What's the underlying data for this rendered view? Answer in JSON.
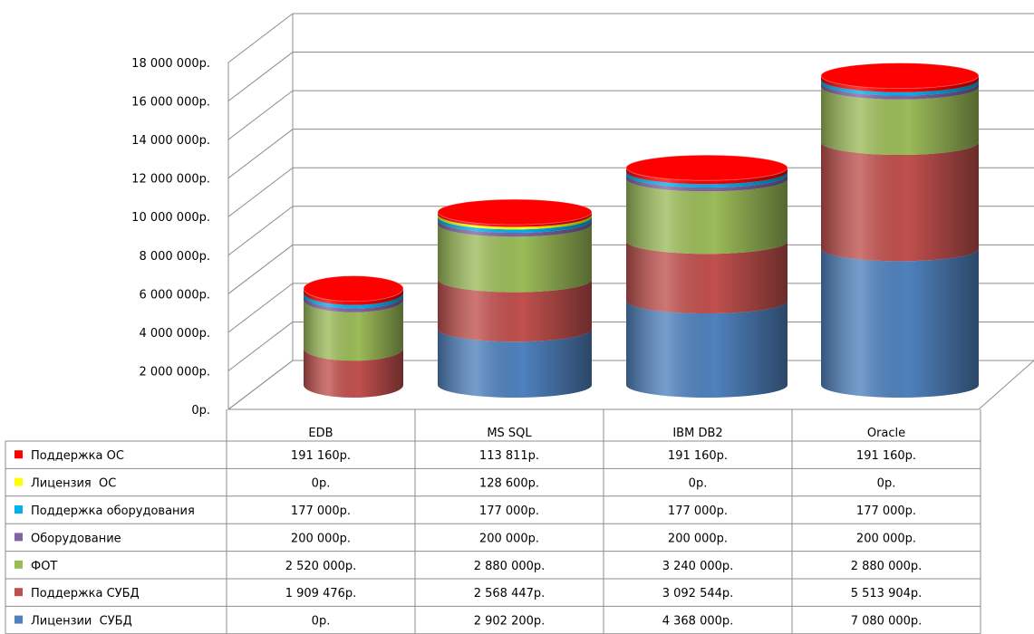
{
  "chart_data": {
    "type": "bar",
    "stacked": true,
    "style": "3d-cylinder",
    "title": "",
    "xlabel": "",
    "ylabel": "",
    "categories": [
      "EDB",
      "MS SQL",
      "IBM DB2",
      "Oracle"
    ],
    "ylim": [
      0,
      18000000
    ],
    "yticks": [
      0,
      2000000,
      4000000,
      6000000,
      8000000,
      10000000,
      12000000,
      14000000,
      16000000,
      18000000
    ],
    "ytick_labels": [
      "0р.",
      "2 000 000р.",
      "4 000 000р.",
      "6 000 000р.",
      "8 000 000р.",
      "10 000 000р.",
      "12 000 000р.",
      "14 000 000р.",
      "16 000 000р.",
      "18 000 000р."
    ],
    "grid": true,
    "legend": "in-table",
    "series": [
      {
        "name": "Лицензии  СУБД",
        "color": "#4F81BD",
        "values": [
          0,
          2902200,
          4368000,
          7080000
        ],
        "labels": [
          "0р.",
          "2 902 200р.",
          "4 368 000р.",
          "7 080 000р."
        ]
      },
      {
        "name": "Поддержка СУБД",
        "color": "#C0504D",
        "values": [
          1909476,
          2568447,
          3092544,
          5513904
        ],
        "labels": [
          "1 909 476р.",
          "2 568 447р.",
          "3 092 544р.",
          "5 513 904р."
        ]
      },
      {
        "name": "ФОТ",
        "color": "#9BBB59",
        "values": [
          2520000,
          2880000,
          3240000,
          2880000
        ],
        "labels": [
          "2 520 000р.",
          "2 880 000р.",
          "3 240 000р.",
          "2 880 000р."
        ]
      },
      {
        "name": "Оборудование",
        "color": "#8064A2",
        "values": [
          200000,
          200000,
          200000,
          200000
        ],
        "labels": [
          "200 000р.",
          "200 000р.",
          "200 000р.",
          "200 000р."
        ]
      },
      {
        "name": "Поддержка оборудования",
        "color": "#00B0F0",
        "values": [
          177000,
          177000,
          177000,
          177000
        ],
        "labels": [
          "177 000р.",
          "177 000р.",
          "177 000р.",
          "177 000р."
        ]
      },
      {
        "name": "Лицензия  ОС",
        "color": "#FFFF00",
        "values": [
          0,
          128600,
          0,
          0
        ],
        "labels": [
          "0р.",
          "128 600р.",
          "0р.",
          "0р."
        ]
      },
      {
        "name": "Поддержка ОС",
        "color": "#FF0000",
        "values": [
          191160,
          113811,
          191160,
          191160
        ],
        "labels": [
          "191 160р.",
          "113 811р.",
          "191 160р.",
          "191 160р."
        ]
      }
    ]
  }
}
